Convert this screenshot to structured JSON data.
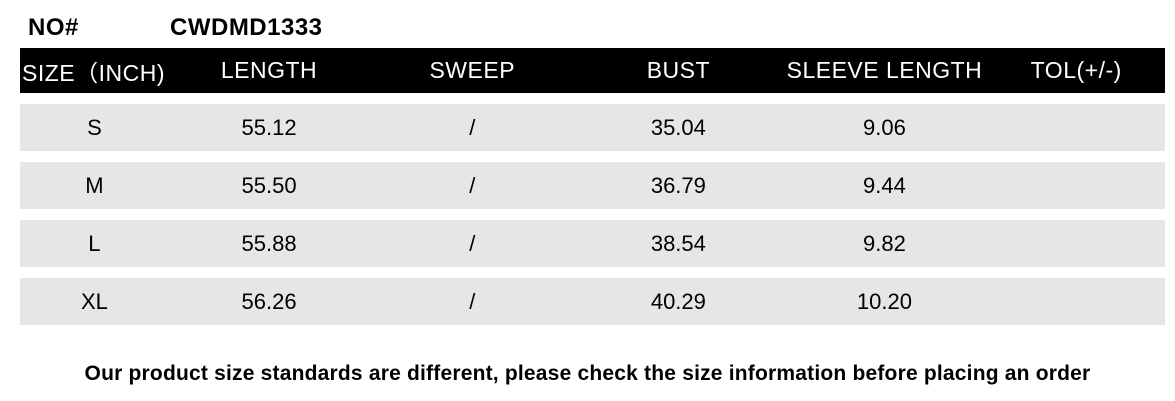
{
  "product": {
    "no_label": "NO#",
    "no_value": "CWDMD1333"
  },
  "table": {
    "unit": "INCH",
    "headers": [
      "SIZE（INCH)",
      "LENGTH",
      "SWEEP",
      "BUST",
      "SLEEVE LENGTH",
      "TOL(+/-)"
    ],
    "rows": [
      {
        "size": "S",
        "length": "55.12",
        "sweep": "/",
        "bust": "35.04",
        "sleeve_length": "9.06",
        "tol": ""
      },
      {
        "size": "M",
        "length": "55.50",
        "sweep": "/",
        "bust": "36.79",
        "sleeve_length": "9.44",
        "tol": ""
      },
      {
        "size": "L",
        "length": "55.88",
        "sweep": "/",
        "bust": "38.54",
        "sleeve_length": "9.82",
        "tol": ""
      },
      {
        "size": "XL",
        "length": "56.26",
        "sweep": "/",
        "bust": "40.29",
        "sleeve_length": "10.20",
        "tol": ""
      }
    ]
  },
  "footer": {
    "note": "Our product size standards are different, please check the size information before placing an order"
  },
  "colors": {
    "header_bg": "#000000",
    "header_text": "#ffffff",
    "row_bg": "#e6e6e6",
    "page_bg": "#ffffff",
    "text": "#000000"
  }
}
